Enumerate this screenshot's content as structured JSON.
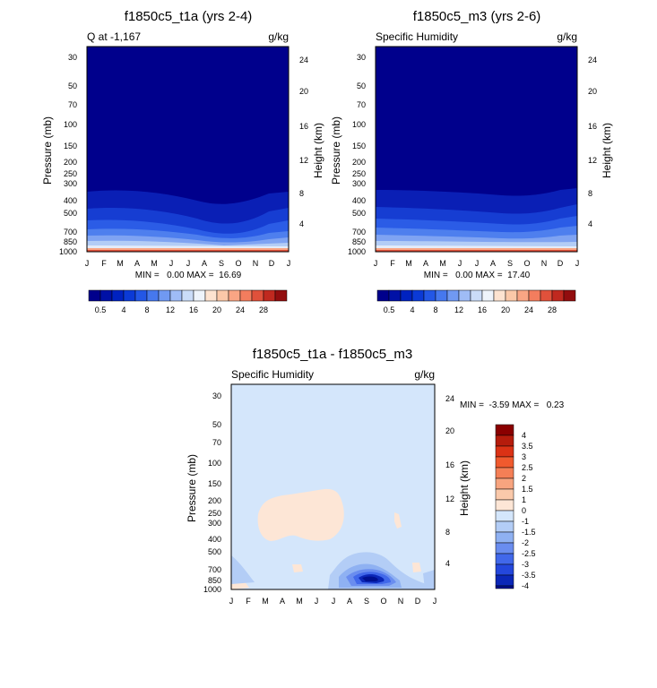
{
  "chart_data": [
    {
      "type": "heatmap",
      "title": "f1850c5_t1a (yrs 2-4)",
      "left_label": "Q at -1,167",
      "units": "g/kg",
      "ylabel": "Pressure (mb)",
      "y2label": "Height (km)",
      "x_ticks": [
        "J",
        "F",
        "M",
        "A",
        "M",
        "J",
        "J",
        "A",
        "S",
        "O",
        "N",
        "D",
        "J"
      ],
      "pressure_ticks": [
        30,
        50,
        70,
        100,
        150,
        200,
        250,
        300,
        400,
        500,
        700,
        850,
        1000
      ],
      "height_ticks": [
        24,
        20,
        16,
        12,
        8,
        4
      ],
      "stats_text": "MIN =   0.00 MAX =  16.69",
      "min": 0.0,
      "max": 16.69,
      "colorbar_labels": [
        "0.5",
        "4",
        "8",
        "12",
        "16",
        "20",
        "24",
        "28"
      ]
    },
    {
      "type": "heatmap",
      "title": "f1850c5_m3 (yrs 2-6)",
      "left_label": "Specific Humidity",
      "units": "g/kg",
      "ylabel": "Pressure (mb)",
      "y2label": "Height (km)",
      "x_ticks": [
        "J",
        "F",
        "M",
        "A",
        "M",
        "J",
        "J",
        "A",
        "S",
        "O",
        "N",
        "D",
        "J"
      ],
      "pressure_ticks": [
        30,
        50,
        70,
        100,
        150,
        200,
        250,
        300,
        400,
        500,
        700,
        850,
        1000
      ],
      "height_ticks": [
        24,
        20,
        16,
        12,
        8,
        4
      ],
      "stats_text": "MIN =   0.00 MAX =  17.40",
      "min": 0.0,
      "max": 17.4,
      "colorbar_labels": [
        "0.5",
        "4",
        "8",
        "12",
        "16",
        "20",
        "24",
        "28"
      ]
    },
    {
      "type": "heatmap",
      "title": "f1850c5_t1a - f1850c5_m3",
      "left_label": "Specific Humidity",
      "units": "g/kg",
      "ylabel": "Pressure (mb)",
      "y2label": "Height (km)",
      "x_ticks": [
        "J",
        "F",
        "M",
        "A",
        "M",
        "J",
        "J",
        "A",
        "S",
        "O",
        "N",
        "D",
        "J"
      ],
      "pressure_ticks": [
        30,
        50,
        70,
        100,
        150,
        200,
        250,
        300,
        400,
        500,
        700,
        850,
        1000
      ],
      "height_ticks": [
        24,
        20,
        16,
        12,
        8,
        4
      ],
      "stats_text": "MIN =  -3.59 MAX =   0.23",
      "min": -3.59,
      "max": 0.23,
      "colorbar_labels": [
        "4",
        "3.5",
        "3",
        "2.5",
        "2",
        "1.5",
        "1",
        "0",
        "-1",
        "-1.5",
        "-2",
        "-2.5",
        "-3",
        "-3.5",
        "-4"
      ]
    }
  ],
  "colors": {
    "abs_scale": [
      "#00008c",
      "#0011a6",
      "#0022c0",
      "#0b3ad6",
      "#2357e6",
      "#4678ee",
      "#7099f2",
      "#9fbcf6",
      "#cadcf8",
      "#eef4fb",
      "#fde3d0",
      "#fbc8a8",
      "#f9a584",
      "#f37d5e",
      "#e0513b",
      "#c0291f",
      "#920d0e"
    ],
    "diff_scale": [
      "#8a0000",
      "#b51c0c",
      "#db3215",
      "#f05a2e",
      "#f47f56",
      "#f7a47f",
      "#fac9aa",
      "#fde6d6",
      "#d4e6fb",
      "#b3cdf6",
      "#8fb1f2",
      "#6a8def",
      "#4168ea",
      "#2447dc",
      "#0b27b8",
      "#001090"
    ]
  }
}
